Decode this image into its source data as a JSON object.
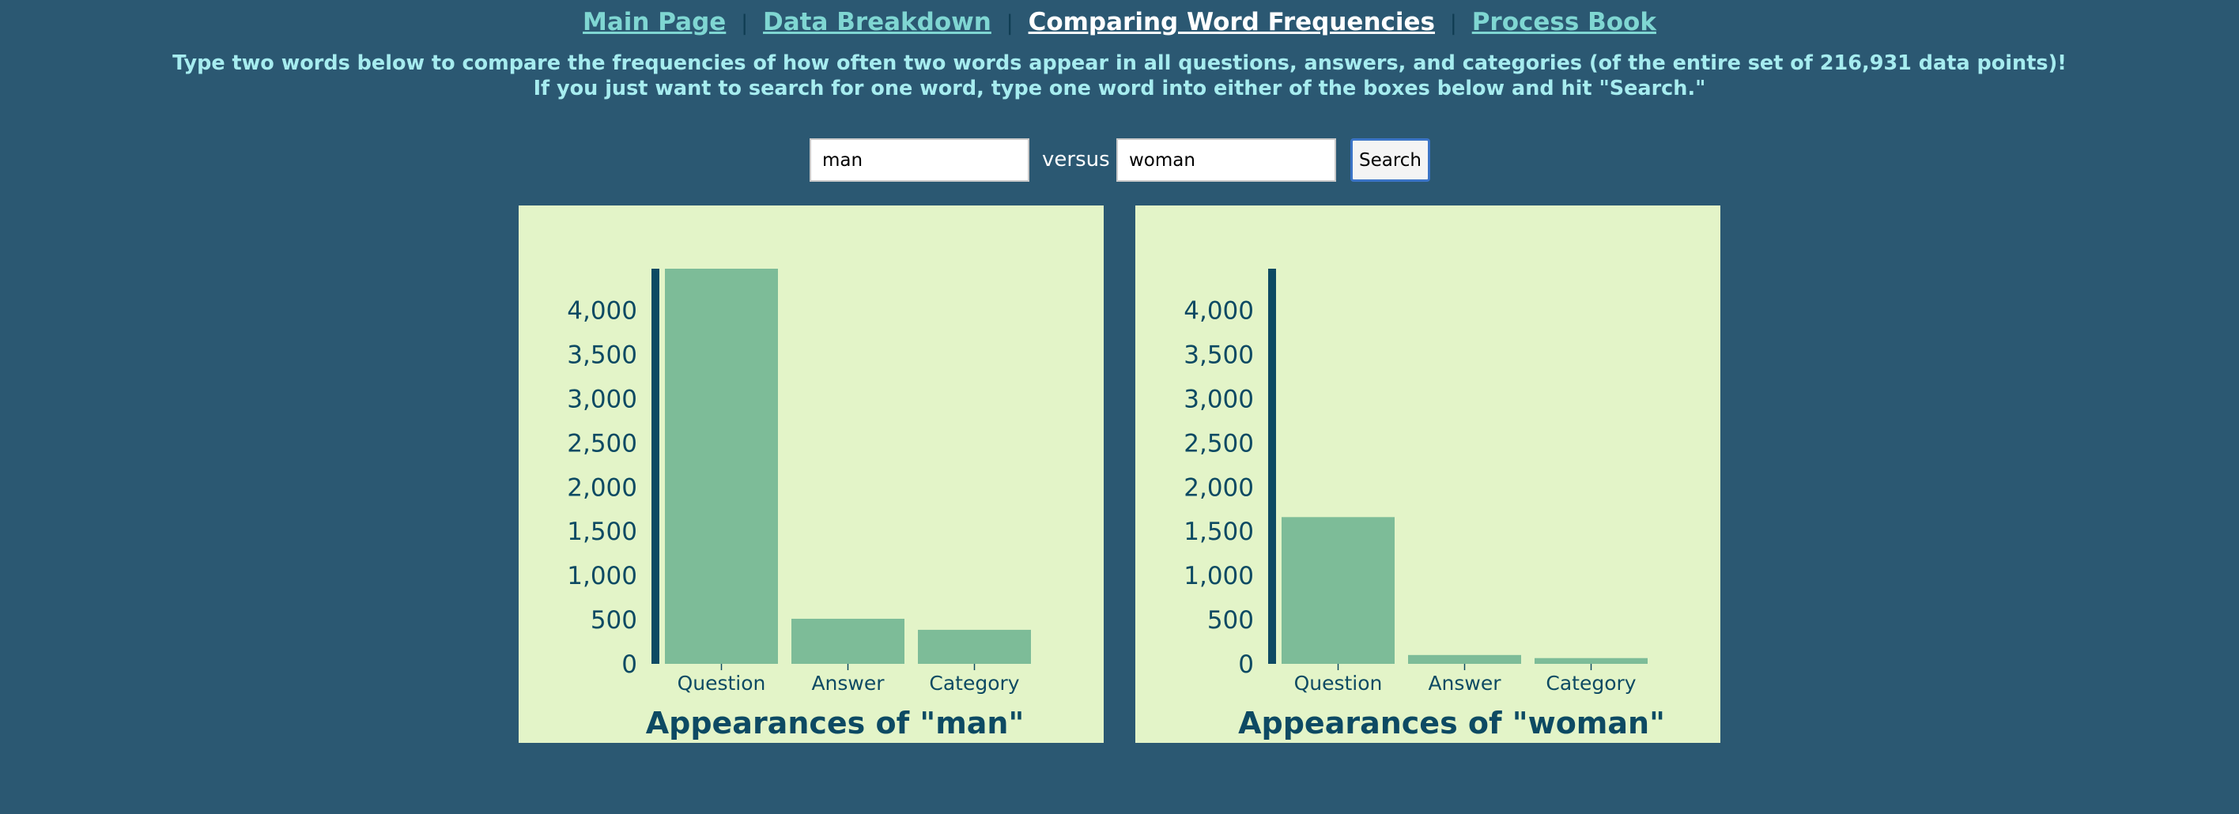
{
  "nav": {
    "links": [
      "Main Page",
      "Data Breakdown",
      "Comparing Word Frequencies",
      "Process Book"
    ],
    "separator": "|"
  },
  "instructions": {
    "line1": "Type two words below to compare the frequencies of how often two words appear in all questions, answers, and categories (of the entire set of 216,931 data points)!",
    "line2": "If you just want to search for one word, type one word into either of the boxes below and hit \"Search.\""
  },
  "search": {
    "word1": "man",
    "versus_label": "versus",
    "word2": "woman",
    "button_label": "Search"
  },
  "colors": {
    "background": "#2b5872",
    "panel": "#e3f4c8",
    "bar": "#7dbc98",
    "axis": "#0d4a63",
    "nav_link": "#7fd6d2",
    "nav_active": "#ffffff",
    "instructions_text": "#a6ecef"
  },
  "chart_data": [
    {
      "type": "bar",
      "title": "Appearances of \"man\"",
      "categories": [
        "Question",
        "Answer",
        "Category"
      ],
      "values": [
        4470,
        510,
        385
      ],
      "ylim": [
        0,
        4470
      ],
      "yticks": [
        0,
        500,
        1000,
        1500,
        2000,
        2500,
        3000,
        3500,
        4000
      ],
      "ytick_labels": [
        "0",
        "500",
        "1,000",
        "1,500",
        "2,000",
        "2,500",
        "3,000",
        "3,500",
        "4,000"
      ]
    },
    {
      "type": "bar",
      "title": "Appearances of \"woman\"",
      "categories": [
        "Question",
        "Answer",
        "Category"
      ],
      "values": [
        1660,
        100,
        65
      ],
      "ylim": [
        0,
        4470
      ],
      "yticks": [
        0,
        500,
        1000,
        1500,
        2000,
        2500,
        3000,
        3500,
        4000
      ],
      "ytick_labels": [
        "0",
        "500",
        "1,000",
        "1,500",
        "2,000",
        "2,500",
        "3,000",
        "3,500",
        "4,000"
      ]
    }
  ]
}
